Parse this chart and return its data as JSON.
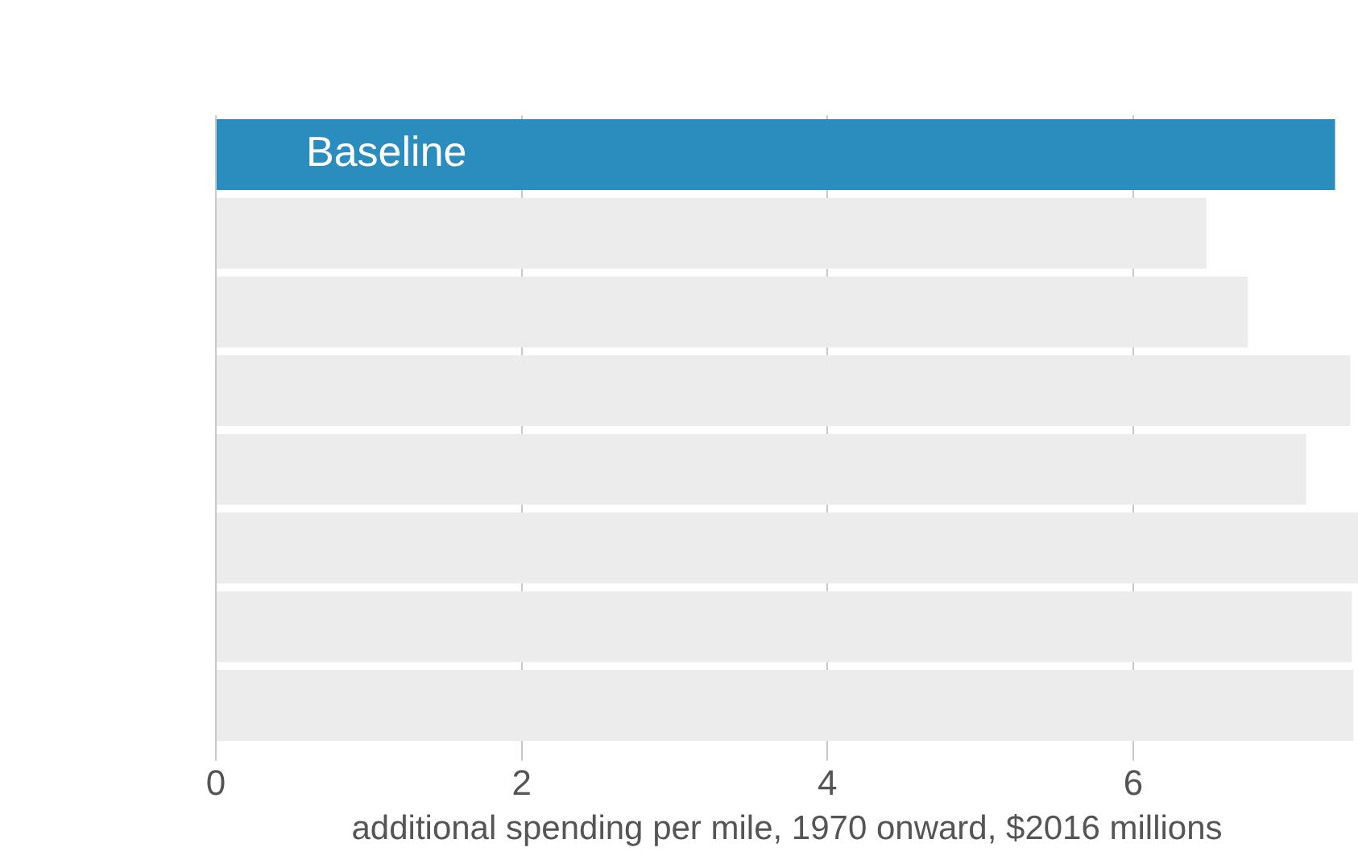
{
  "chart_data": {
    "type": "bar",
    "orientation": "horizontal",
    "xlabel": "additional spending per mile, 1970 onward, $2016 millions",
    "categories": [
      "Baseline",
      null,
      null,
      null,
      null,
      null,
      null,
      null
    ],
    "values": [
      7.32,
      6.48,
      6.75,
      7.42,
      7.13,
      7.47,
      7.43,
      7.44
    ],
    "colors": [
      "#2b8cbe",
      "#ececec",
      "#ececec",
      "#ececec",
      "#ececec",
      "#ececec",
      "#ececec",
      "#ececec"
    ],
    "xlim": [
      0,
      7.47
    ],
    "xticks": [
      0,
      2,
      4,
      6
    ],
    "grid": "x"
  }
}
